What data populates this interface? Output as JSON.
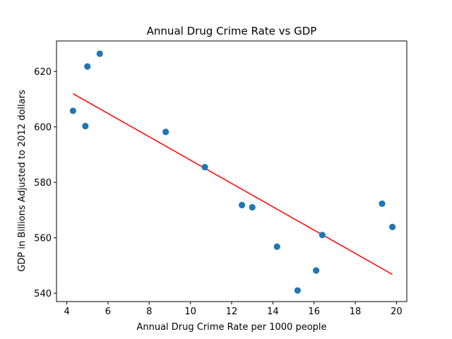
{
  "chart_data": {
    "type": "scatter",
    "title": "Annual Drug Crime Rate vs GDP",
    "xlabel": "Annual Drug Crime Rate per 1000 people",
    "ylabel": "GDP in Billions Adjusted to 2012 dollars",
    "xlim": [
      3.5,
      20.5
    ],
    "ylim": [
      537,
      631
    ],
    "xticks": [
      4,
      6,
      8,
      10,
      12,
      14,
      16,
      18,
      20
    ],
    "yticks": [
      540,
      560,
      580,
      600,
      620
    ],
    "grid": false,
    "series": [
      {
        "type": "scatter",
        "color": "#1f77b4",
        "points": [
          {
            "x": 4.3,
            "y": 605.8
          },
          {
            "x": 4.9,
            "y": 600.3
          },
          {
            "x": 5.0,
            "y": 621.8
          },
          {
            "x": 5.6,
            "y": 626.4
          },
          {
            "x": 8.8,
            "y": 598.2
          },
          {
            "x": 10.7,
            "y": 585.5
          },
          {
            "x": 12.5,
            "y": 571.8
          },
          {
            "x": 13.0,
            "y": 571.0
          },
          {
            "x": 14.2,
            "y": 556.8
          },
          {
            "x": 15.2,
            "y": 541.0
          },
          {
            "x": 16.1,
            "y": 548.2
          },
          {
            "x": 16.4,
            "y": 561.0
          },
          {
            "x": 19.3,
            "y": 572.3
          },
          {
            "x": 19.8,
            "y": 563.9
          }
        ]
      },
      {
        "type": "line",
        "color": "#ff0000",
        "points": [
          {
            "x": 4.3,
            "y": 612.0
          },
          {
            "x": 19.8,
            "y": 546.8
          }
        ]
      }
    ]
  }
}
